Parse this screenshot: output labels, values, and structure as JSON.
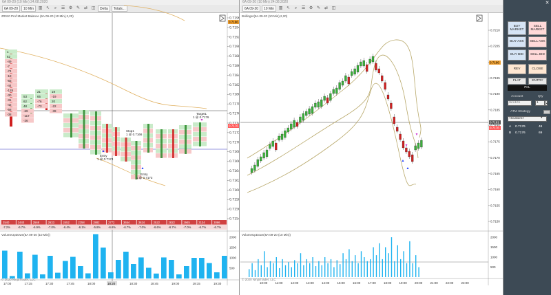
{
  "left_chart": {
    "title": "6A 09-20 (10 Min)  24.08.2020",
    "toolbar": {
      "instrument": "6A 09-20",
      "interval": "10 Min",
      "btn1": "Delta",
      "btn2": "Totals..."
    },
    "indicator_label": "Z0010 Prof Market Balance  (6A 09-20 (10 Min),2,20)",
    "volume_label": "VolumeUpDown(6A 09-20 (10 Min))",
    "price_ticks": [
      "0.7196",
      "0.7194",
      "0.7192",
      "0.7190",
      "0.7188",
      "0.7186",
      "0.7184",
      "0.7182",
      "0.7180",
      "0.7178",
      "0.7176",
      "0.7174",
      "0.7172",
      "0.7170",
      "0.7168",
      "0.7166",
      "0.7164",
      "0.7162",
      "0.7160",
      "0.7158",
      "0.7156",
      "0.7154"
    ],
    "price_highlight": "0.7196",
    "price_current": "0.7176",
    "volume_ticks": [
      "2000",
      "1500",
      "1000",
      "500"
    ],
    "time_ticks": [
      "17:00",
      "17:15",
      "17:30",
      "17:45",
      "18:00",
      "18:15",
      "18:30",
      "18:45",
      "19:00",
      "19:15",
      "19:30"
    ],
    "time_highlight": "18:20",
    "totals": [
      "2540",
      "3440",
      "2568",
      "2633",
      "2452",
      "2258",
      "2882",
      "2772",
      "3654",
      "3624",
      "2522",
      "2822",
      "2945",
      "3134",
      "3066"
    ],
    "totals_pct": [
      "-7.2%",
      "-6.7%",
      "-6.9%",
      "-7.0%",
      "-6.4%",
      "-6.1%",
      "-5.8%",
      "-6.6%",
      "-6.7%",
      "-7.0%",
      "-6.6%",
      "-6.7%",
      "-7.0%",
      "-6.7%",
      "-6.7%"
    ],
    "volume_values": [
      1350,
      120,
      1300,
      250,
      1150,
      200,
      1100,
      280,
      850,
      1050,
      600,
      250,
      2150,
      1500,
      300,
      900,
      1300,
      700,
      1020,
      520,
      240,
      1020,
      900,
      200,
      600,
      1000,
      1000,
      750,
      300,
      1100
    ],
    "footprint_col1": [
      "1",
      "62",
      "-49",
      "-7",
      "-74",
      "-19",
      "-83",
      "-44",
      "-128",
      "-30",
      "-31",
      "-42",
      "-58",
      "-38"
    ],
    "footprint_col2": [
      "53",
      "62",
      "48",
      "-69",
      "-117",
      "-26"
    ],
    "footprint_col3": [
      "21",
      "65",
      "-76",
      "-73"
    ],
    "footprint_col4": [
      "19",
      "-19",
      "20",
      "-22",
      "-39"
    ],
    "annotations": {
      "stop": "Stop1",
      "stop_price": "1 @ 0.7166",
      "entry1": "Entry",
      "entry1_price": "1 @ 0.7174",
      "entry2": "Entry",
      "entry2_price": "1 @ 0.7173",
      "target": "Target1",
      "target_price": "1 @ 0.7176"
    },
    "watermark": "© 2020 NinjaTrader, LLC"
  },
  "right_chart": {
    "title": "6A 09-20 (10 Min)  24.08.2020",
    "toolbar": {
      "instrument": "6A 09-20",
      "interval": "10 Min"
    },
    "indicator_label": "Bollinger(6A 09-20 (10 Min),2,20)",
    "volume_label": "VolumeUpDown(6A 09-20 (10 Min))",
    "price_ticks": [
      "0.7210",
      "0.7205",
      "0.7200",
      "0.7195",
      "0.7190",
      "0.7185",
      "0.7180",
      "0.7175",
      "0.7170",
      "0.7165",
      "0.7160",
      "0.7155",
      "0.7150"
    ],
    "price_highlight": "0.7196",
    "price_current": "0.7181",
    "price_current2": "0.7176",
    "volume_ticks": [
      "2000",
      "1500",
      "1000",
      "500"
    ],
    "time_ticks": [
      "10:00",
      "11:00",
      "12:00",
      "13:00",
      "14:00",
      "15:00",
      "16:00",
      "17:00",
      "18:00",
      "19:00",
      "20:00",
      "21:00",
      "22:00",
      "23:00"
    ],
    "watermark": "© 2020 NinjaTrader, LLC"
  },
  "trade_panel": {
    "buy_market": "BUY MARKET",
    "sell_market": "SELL MARKET",
    "buy_ask": "BUY ASK",
    "sell_ask": "SELL ASK",
    "buy_bid": "BUY BID",
    "sell_bid": "SELL BID",
    "rev": "REV",
    "close": "CLOSE",
    "flat": "FLAT",
    "entry": "ENTRY",
    "pnl_label": "PnL",
    "account_label": "Account",
    "qty_label": "Qty",
    "account_value": "Sim101",
    "qty_value": "1",
    "atm_label": "ATM Strategy",
    "atm_value": "<Custom>",
    "ask_label": "A",
    "ask_price": "0.7176",
    "ask_size": "46",
    "bid_label": "B",
    "bid_price": "0.7176",
    "bid_size": "69"
  }
}
